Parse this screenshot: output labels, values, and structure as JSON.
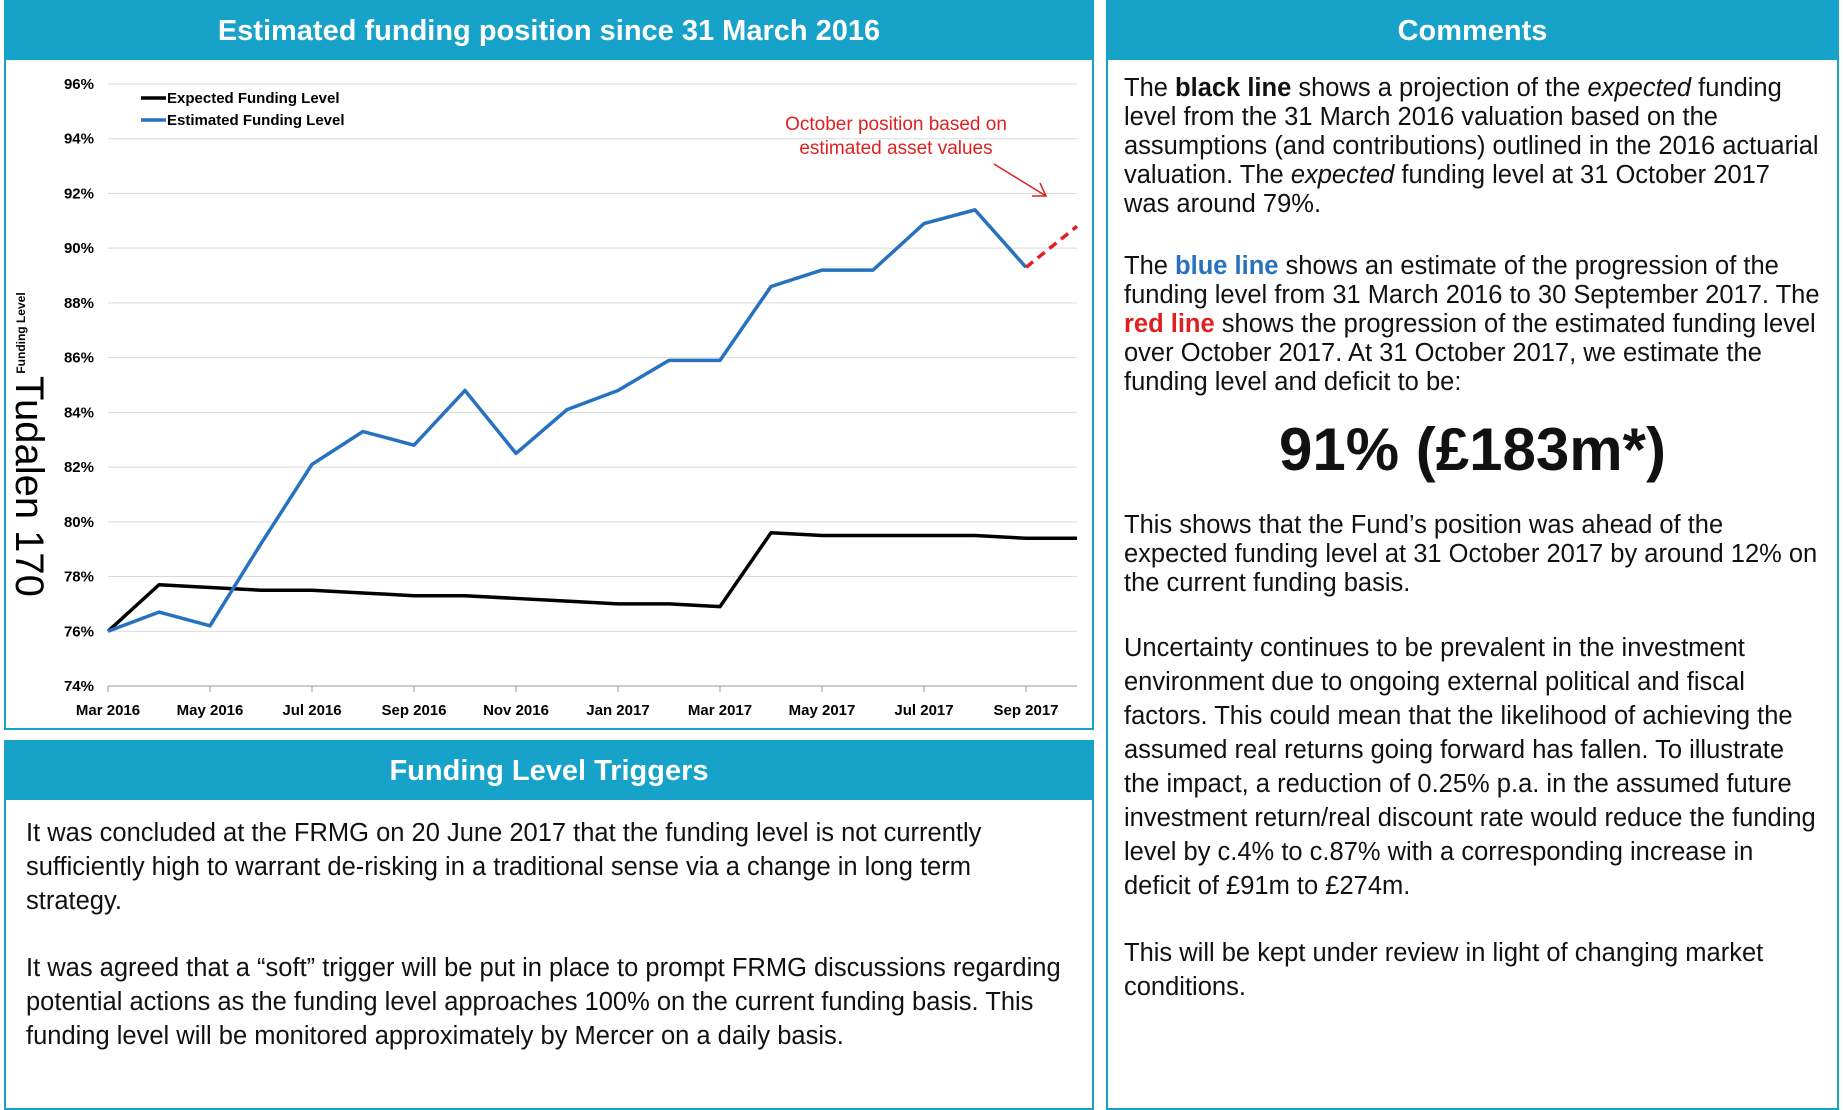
{
  "stamp": "Tudalen 170",
  "chart_panel": {
    "title": "Estimated funding position since 31 March 2016"
  },
  "chart_data": {
    "type": "line",
    "y_label": "Funding Level",
    "categories": [
      "Mar 2016",
      null,
      "May 2016",
      null,
      "Jul 2016",
      null,
      "Sep 2016",
      null,
      "Nov 2016",
      null,
      "Jan 2017",
      null,
      "Mar 2017",
      null,
      "May 2017",
      null,
      "Jul 2017",
      null,
      "Sep 2017",
      null
    ],
    "series": [
      {
        "name": "Expected Funding Level",
        "color": "#000000",
        "values": [
          76.0,
          77.7,
          77.6,
          77.5,
          77.5,
          77.4,
          77.3,
          77.3,
          77.2,
          77.1,
          77.0,
          77.0,
          76.9,
          79.6,
          79.5,
          79.5,
          79.5,
          79.5,
          79.4,
          79.4
        ]
      },
      {
        "name": "Estimated Funding Level",
        "color": "#2672c0",
        "values": [
          76.0,
          76.7,
          76.2,
          79.2,
          82.1,
          83.3,
          82.8,
          84.8,
          82.5,
          84.1,
          84.8,
          85.9,
          85.9,
          88.6,
          89.2,
          89.2,
          90.9,
          91.4,
          89.3,
          null
        ]
      },
      {
        "color": "#e02020",
        "dash": true,
        "values": [
          null,
          null,
          null,
          null,
          null,
          null,
          null,
          null,
          null,
          null,
          null,
          null,
          null,
          null,
          null,
          null,
          null,
          null,
          89.3,
          90.8
        ]
      }
    ],
    "ylim": [
      74,
      96
    ],
    "yticks": [
      {
        "value": 74,
        "label": "74%"
      },
      {
        "value": 76,
        "label": "76%"
      },
      {
        "value": 78,
        "label": "78%"
      },
      {
        "value": 80,
        "label": "80%"
      },
      {
        "value": 82,
        "label": "82%"
      },
      {
        "value": 84,
        "label": "84%"
      },
      {
        "value": 86,
        "label": "86%"
      },
      {
        "value": 88,
        "label": "88%"
      },
      {
        "value": 90,
        "label": "90%"
      },
      {
        "value": 92,
        "label": "92%"
      },
      {
        "value": 94,
        "label": "94%"
      },
      {
        "value": 96,
        "label": "96%"
      }
    ],
    "grid": true,
    "legend": "top-left",
    "annotation": [
      "October position based on",
      "estimated asset values"
    ]
  },
  "triggers": {
    "title": "Funding Level Triggers",
    "paragraphs": [
      "It was concluded at the FRMG on 20 June 2017 that the funding level is not currently sufficiently high to warrant de-risking in a traditional sense via a change in long term strategy.",
      "It was agreed that a “soft” trigger will be put in place to prompt FRMG discussions regarding potential actions as the funding level approaches 100% on the current funding basis. This funding level will be monitored approximately by Mercer on a daily basis."
    ]
  },
  "comments": {
    "title": "Comments",
    "paragraphs": [
      [
        "The ",
        "black line",
        " shows a projection of the ",
        "expected",
        " funding level from the 31 March 2016 valuation based on the assumptions (and contributions) outlined in the 2016 actuarial valuation. The ",
        "expected",
        " funding level at 31 October 2017 was around 79%."
      ],
      [
        "The ",
        "blue line",
        " shows an estimate of the progression of the funding level from 31 March 2016 to 30 September 2017. The ",
        "red line",
        " shows the progression of the estimated funding level over October 2017. At 31 October 2017, we estimate the funding level and deficit to be:"
      ],
      [
        "This shows that the Fund’s position was ahead of the expected funding level at 31 October 2017 by around 12% on the current funding basis."
      ],
      [
        "Uncertainty continues to be prevalent in the investment environment due to ongoing external political and fiscal factors. This could mean that the likelihood of achieving the assumed real returns going forward has fallen. To illustrate the impact, a reduction of 0.25% p.a. in the assumed future investment return/real discount rate would reduce the funding level by c.4% to c.87% with a corresponding increase in deficit of £91m to £274m."
      ],
      [
        "This will be kept under review in light of changing market conditions."
      ]
    ],
    "headline": "91% (£183m*)"
  }
}
